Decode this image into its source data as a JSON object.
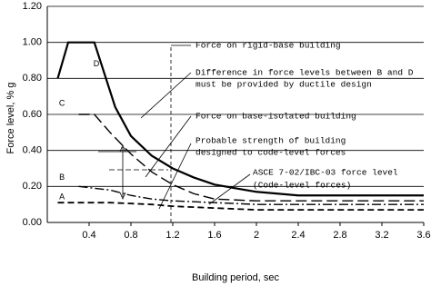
{
  "chart_data": {
    "type": "line",
    "y_label": "Force level, % g",
    "x_label": "Building period, sec",
    "xlim": [
      0,
      3.6
    ],
    "xticks": [
      0.4,
      0.8,
      1.2,
      1.6,
      2.0,
      2.4,
      2.8,
      3.2,
      3.6
    ],
    "ylim": [
      0,
      1.2
    ],
    "yticks": [
      {
        "value": 0,
        "label": "0.00"
      },
      {
        "value": 0.2,
        "label": "0.20"
      },
      {
        "value": 0.4,
        "label": "0.40"
      },
      {
        "value": 0.6,
        "label": "0.60"
      },
      {
        "value": 0.8,
        "label": "0.80"
      },
      {
        "value": 1.0,
        "label": "1.00"
      },
      {
        "value": 1.2,
        "label": "1.20"
      }
    ],
    "grid": true,
    "series": [
      {
        "name": "D",
        "color": "#000000",
        "x": [
          0.1,
          0.2,
          0.45,
          0.55,
          0.65,
          0.8,
          1.0,
          1.2,
          1.4,
          1.6,
          2.0,
          2.4,
          3.6
        ],
        "values": [
          0.8,
          1.0,
          1.0,
          0.82,
          0.64,
          0.48,
          0.37,
          0.3,
          0.25,
          0.21,
          0.17,
          0.15,
          0.15
        ]
      },
      {
        "name": "C",
        "color": "#000000",
        "x": [
          0.3,
          0.45,
          0.6,
          0.8,
          1.0,
          1.2,
          1.4,
          1.6,
          2.0,
          3.6
        ],
        "values": [
          0.6,
          0.6,
          0.5,
          0.38,
          0.28,
          0.21,
          0.16,
          0.13,
          0.12,
          0.12
        ]
      },
      {
        "name": "B",
        "color": "#000000",
        "x": [
          0.3,
          0.6,
          0.8,
          1.0,
          1.2,
          1.6,
          2.0,
          3.6
        ],
        "values": [
          0.2,
          0.18,
          0.15,
          0.13,
          0.12,
          0.11,
          0.1,
          0.1
        ]
      },
      {
        "name": "A",
        "color": "#000000",
        "x": [
          0.1,
          0.6,
          1.0,
          1.2,
          1.6,
          2.0,
          3.6
        ],
        "values": [
          0.11,
          0.11,
          0.1,
          0.09,
          0.08,
          0.07,
          0.07
        ]
      }
    ],
    "annotations": [
      "Force on rigid-base building",
      "Difference in force levels between B and D",
      "must be provided by ductile design",
      "Force on base-isolated building",
      "Probable strength of building",
      "designed to code-level forces",
      "ASCE 7-02/IBC-03 force level",
      "(Code-level forces)"
    ]
  }
}
